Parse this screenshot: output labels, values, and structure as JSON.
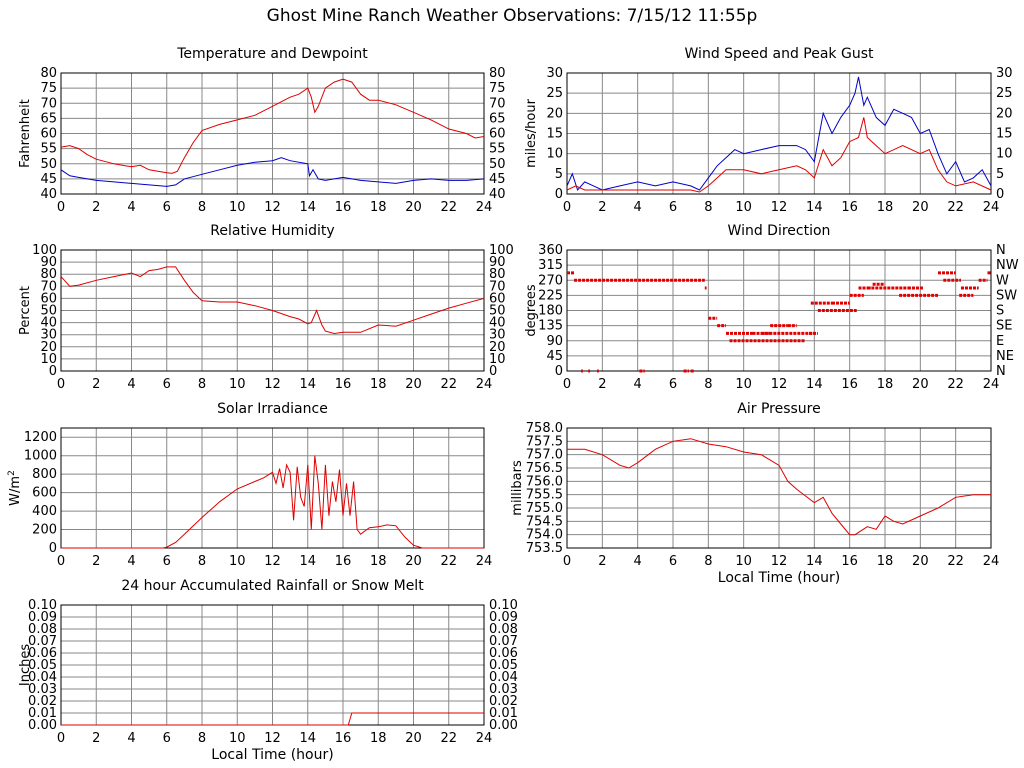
{
  "page": {
    "title": "Ghost Mine Ranch Weather Observations: 7/15/12 11:55p"
  },
  "chart_data": [
    {
      "id": "temp",
      "type": "line",
      "title": "Temperature and Dewpoint",
      "xlabel": "",
      "ylabel": "Fahrenheit",
      "xlim": [
        0,
        24
      ],
      "ylim": [
        40,
        80
      ],
      "xticks": [
        0,
        2,
        4,
        6,
        8,
        10,
        12,
        14,
        16,
        18,
        20,
        22,
        24
      ],
      "yticks": [
        40,
        45,
        50,
        55,
        60,
        65,
        70,
        75,
        80
      ],
      "yticks_right": [
        40,
        45,
        50,
        55,
        60,
        65,
        70,
        75,
        80
      ],
      "grid": true,
      "series": [
        {
          "color": "#e00000",
          "x": [
            0,
            0.5,
            1,
            1.5,
            2,
            3,
            4,
            4.5,
            5,
            5.5,
            6,
            6.3,
            6.6,
            7,
            7.5,
            8,
            9,
            10,
            11,
            12,
            13,
            13.5,
            14,
            14.2,
            14.4,
            14.6,
            15,
            15.5,
            16,
            16.5,
            17,
            17.5,
            18,
            19,
            20,
            21,
            22,
            23,
            23.5,
            24
          ],
          "y": [
            55.5,
            56,
            55,
            53,
            51.5,
            50,
            49,
            49.5,
            48,
            47.5,
            47,
            46.8,
            47.5,
            52,
            57,
            61,
            63,
            64.5,
            66,
            69,
            72,
            73,
            75,
            72,
            67,
            69,
            75,
            77,
            78,
            77,
            73,
            71,
            71,
            69.5,
            67,
            64.5,
            61.5,
            60,
            58.5,
            59
          ]
        },
        {
          "color": "#0000c8",
          "x": [
            0,
            0.5,
            1,
            2,
            3,
            4,
            5,
            6,
            6.5,
            7,
            8,
            9,
            10,
            11,
            12,
            12.5,
            13,
            14,
            14.1,
            14.3,
            14.6,
            15,
            16,
            17,
            18,
            19,
            20,
            21,
            22,
            23,
            24
          ],
          "y": [
            48,
            46,
            45.5,
            44.5,
            44,
            43.5,
            43,
            42.5,
            43,
            45,
            46.5,
            48,
            49.5,
            50.5,
            51,
            52,
            51,
            50,
            46,
            48,
            45,
            44.5,
            45.5,
            44.5,
            44,
            43.5,
            44.5,
            45,
            44.5,
            44.5,
            45
          ]
        }
      ]
    },
    {
      "id": "wind",
      "type": "line",
      "title": "Wind Speed and Peak Gust",
      "xlabel": "",
      "ylabel": "miles/hour",
      "xlim": [
        0,
        24
      ],
      "ylim": [
        0,
        30
      ],
      "xticks": [
        0,
        2,
        4,
        6,
        8,
        10,
        12,
        14,
        16,
        18,
        20,
        22,
        24
      ],
      "yticks": [
        0,
        5,
        10,
        15,
        20,
        25,
        30
      ],
      "yticks_right": [
        0,
        5,
        10,
        15,
        20,
        25,
        30
      ],
      "grid": true,
      "series": [
        {
          "color": "#0000c8",
          "x": [
            0,
            0.3,
            0.6,
            1,
            1.5,
            2,
            3,
            4,
            5,
            6,
            7,
            7.5,
            8,
            8.5,
            9,
            9.5,
            10,
            11,
            12,
            13,
            13.5,
            14,
            14.5,
            15,
            15.5,
            16,
            16.3,
            16.5,
            16.8,
            17,
            17.5,
            18,
            18.5,
            19,
            19.5,
            20,
            20.5,
            21,
            21.5,
            22,
            22.5,
            23,
            23.5,
            24
          ],
          "y": [
            2,
            5,
            1,
            3,
            2,
            1,
            2,
            3,
            2,
            3,
            2,
            1,
            4,
            7,
            9,
            11,
            10,
            11,
            12,
            12,
            11,
            8,
            20,
            15,
            19,
            22,
            25,
            29,
            22,
            24,
            19,
            17,
            21,
            20,
            19,
            15,
            16,
            10,
            5,
            8,
            3,
            4,
            6,
            2
          ]
        },
        {
          "color": "#e00000",
          "x": [
            0,
            0.5,
            1,
            2,
            3,
            4,
            5,
            6,
            7,
            7.5,
            8,
            8.5,
            9,
            10,
            11,
            12,
            13,
            13.5,
            14,
            14.5,
            15,
            15.5,
            16,
            16.5,
            16.8,
            17,
            17.5,
            18,
            19,
            20,
            20.5,
            21,
            21.5,
            22,
            23,
            24
          ],
          "y": [
            1,
            2,
            1,
            1,
            1,
            1,
            1,
            1,
            1,
            0.5,
            2,
            4,
            6,
            6,
            5,
            6,
            7,
            6,
            4,
            11,
            7,
            9,
            13,
            14,
            19,
            14,
            12,
            10,
            12,
            10,
            11,
            6,
            3,
            2,
            3,
            1
          ]
        }
      ]
    },
    {
      "id": "humidity",
      "type": "line",
      "title": "Relative Humidity",
      "xlabel": "",
      "ylabel": "Percent",
      "xlim": [
        0,
        24
      ],
      "ylim": [
        0,
        100
      ],
      "xticks": [
        0,
        2,
        4,
        6,
        8,
        10,
        12,
        14,
        16,
        18,
        20,
        22,
        24
      ],
      "yticks": [
        0,
        10,
        20,
        30,
        40,
        50,
        60,
        70,
        80,
        90,
        100
      ],
      "yticks_right": [
        0,
        10,
        20,
        30,
        40,
        50,
        60,
        70,
        80,
        90,
        100
      ],
      "grid": true,
      "series": [
        {
          "color": "#e00000",
          "x": [
            0,
            0.5,
            1,
            2,
            3,
            4,
            4.5,
            5,
            5.5,
            6,
            6.5,
            7,
            7.5,
            8,
            9,
            10,
            11,
            12,
            13,
            13.5,
            14,
            14.2,
            14.5,
            14.8,
            15,
            15.5,
            16,
            17,
            18,
            19,
            20,
            21,
            22,
            23,
            24
          ],
          "y": [
            78,
            70,
            71,
            75,
            78,
            81,
            78,
            83,
            84,
            86,
            86,
            75,
            65,
            58,
            57,
            57,
            54,
            50,
            45,
            43,
            39,
            40,
            50,
            38,
            33,
            31,
            32,
            32,
            38,
            37,
            42,
            47,
            52,
            56,
            60
          ]
        }
      ]
    },
    {
      "id": "winddir",
      "type": "scatter",
      "title": "Wind Direction",
      "xlabel": "",
      "ylabel": "degrees",
      "xlim": [
        0,
        24
      ],
      "ylim": [
        0,
        360
      ],
      "xticks": [
        0,
        2,
        4,
        6,
        8,
        10,
        12,
        14,
        16,
        18,
        20,
        22,
        24
      ],
      "yticks": [
        0,
        45,
        90,
        135,
        180,
        225,
        270,
        315,
        360
      ],
      "yticks_right": [
        "N",
        "NE",
        "E",
        "SE",
        "S",
        "SW",
        "W",
        "NW",
        "N"
      ],
      "grid": true,
      "series": [
        {
          "color": "#e00000",
          "segments": [
            [
              0,
              0.4,
              292
            ],
            [
              0.4,
              7.8,
              270
            ],
            [
              0.8,
              0.9,
              0
            ],
            [
              1.2,
              1.3,
              0
            ],
            [
              1.7,
              1.8,
              0
            ],
            [
              4.1,
              4.4,
              0
            ],
            [
              6.6,
              6.9,
              0
            ],
            [
              7.0,
              7.2,
              0
            ],
            [
              7.8,
              7.9,
              247
            ],
            [
              8.0,
              8.5,
              157
            ],
            [
              8.5,
              9.0,
              135
            ],
            [
              9.0,
              10.5,
              112
            ],
            [
              9.2,
              13.5,
              90
            ],
            [
              10.5,
              11.5,
              112
            ],
            [
              11.5,
              12.5,
              135
            ],
            [
              11.0,
              14.0,
              112
            ],
            [
              12.5,
              13.0,
              135
            ],
            [
              13.7,
              14.2,
              112
            ],
            [
              13.8,
              15.0,
              202
            ],
            [
              14.2,
              16.4,
              180
            ],
            [
              15.0,
              16.0,
              202
            ],
            [
              16.0,
              16.8,
              225
            ],
            [
              16.5,
              17.2,
              247
            ],
            [
              17.0,
              19.3,
              247
            ],
            [
              17.3,
              18.0,
              258
            ],
            [
              18.8,
              21.0,
              225
            ],
            [
              19.3,
              20.2,
              247
            ],
            [
              21.0,
              22.0,
              292
            ],
            [
              21.3,
              22.3,
              270
            ],
            [
              22.2,
              23.0,
              225
            ],
            [
              22.3,
              23.3,
              247
            ],
            [
              23.3,
              23.8,
              270
            ],
            [
              23.8,
              24,
              292
            ]
          ]
        }
      ]
    },
    {
      "id": "solar",
      "type": "line",
      "title": "Solar Irradiance",
      "xlabel": "",
      "ylabel": "W/m2",
      "xlim": [
        0,
        24
      ],
      "ylim": [
        0,
        1300
      ],
      "xticks": [
        0,
        2,
        4,
        6,
        8,
        10,
        12,
        14,
        16,
        18,
        20,
        22,
        24
      ],
      "yticks": [
        0,
        200,
        400,
        600,
        800,
        1000,
        1200
      ],
      "grid": true,
      "series": [
        {
          "color": "#e00000",
          "x": [
            0,
            5.8,
            6,
            6.5,
            7,
            8,
            9,
            10,
            11,
            11.5,
            12,
            12.2,
            12.4,
            12.6,
            12.8,
            13,
            13.2,
            13.4,
            13.6,
            13.8,
            14,
            14.2,
            14.4,
            14.6,
            14.8,
            15,
            15.2,
            15.4,
            15.6,
            15.8,
            16,
            16.2,
            16.4,
            16.6,
            16.8,
            17,
            17.5,
            18,
            18.5,
            19,
            19.5,
            20,
            20.5,
            24
          ],
          "y": [
            0,
            0,
            10,
            60,
            150,
            330,
            500,
            640,
            720,
            760,
            820,
            700,
            860,
            650,
            900,
            820,
            300,
            880,
            550,
            450,
            900,
            200,
            1000,
            700,
            200,
            900,
            350,
            720,
            500,
            850,
            350,
            700,
            350,
            720,
            200,
            150,
            220,
            230,
            250,
            240,
            120,
            30,
            0,
            0
          ]
        }
      ]
    },
    {
      "id": "pressure",
      "type": "line",
      "title": "Air Pressure",
      "xlabel": "Local Time (hour)",
      "ylabel": "millibars",
      "xlim": [
        0,
        24
      ],
      "ylim": [
        753.5,
        758.0
      ],
      "xticks": [
        0,
        2,
        4,
        6,
        8,
        10,
        12,
        14,
        16,
        18,
        20,
        22,
        24
      ],
      "yticks": [
        753.5,
        754.0,
        754.5,
        755.0,
        755.5,
        756.0,
        756.5,
        757.0,
        757.5,
        758.0
      ],
      "grid": true,
      "series": [
        {
          "color": "#e00000",
          "x": [
            0,
            1,
            2,
            3,
            3.5,
            4,
            5,
            6,
            7,
            7.5,
            8,
            9,
            10,
            11,
            12,
            12.5,
            13,
            14,
            14.5,
            15,
            15.5,
            16,
            16.3,
            17,
            17.5,
            18,
            18.5,
            19,
            20,
            21,
            22,
            23,
            24
          ],
          "y": [
            757.2,
            757.2,
            757.0,
            756.6,
            756.5,
            756.7,
            757.2,
            757.5,
            757.6,
            757.5,
            757.4,
            757.3,
            757.1,
            757.0,
            756.6,
            756.0,
            755.7,
            755.2,
            755.4,
            754.8,
            754.4,
            754.0,
            754.0,
            754.3,
            754.2,
            754.7,
            754.5,
            754.4,
            754.7,
            755.0,
            755.4,
            755.5,
            755.5
          ]
        }
      ]
    },
    {
      "id": "rain",
      "type": "line",
      "title": "24 hour Accumulated Rainfall or Snow Melt",
      "xlabel": "Local Time (hour)",
      "ylabel": "Inches",
      "xlim": [
        0,
        24
      ],
      "ylim": [
        0,
        0.1
      ],
      "xticks": [
        0,
        2,
        4,
        6,
        8,
        10,
        12,
        14,
        16,
        18,
        20,
        22,
        24
      ],
      "yticks": [
        0.0,
        0.01,
        0.02,
        0.03,
        0.04,
        0.05,
        0.06,
        0.07,
        0.08,
        0.09,
        0.1
      ],
      "yticks_right": [
        0.0,
        0.01,
        0.02,
        0.03,
        0.04,
        0.05,
        0.06,
        0.07,
        0.08,
        0.09,
        0.1
      ],
      "grid": true,
      "series": [
        {
          "color": "#e00000",
          "x": [
            0,
            16.3,
            16.5,
            24
          ],
          "y": [
            0,
            0,
            0.01,
            0.01
          ]
        }
      ]
    }
  ]
}
